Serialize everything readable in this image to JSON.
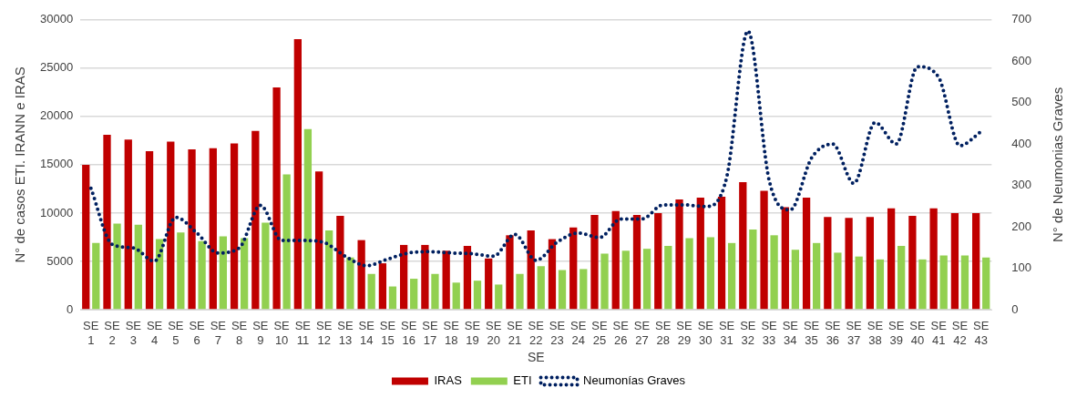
{
  "chart_data": {
    "type": "bar",
    "categories": [
      "SE 1",
      "SE 2",
      "SE 3",
      "SE 4",
      "SE 5",
      "SE 6",
      "SE 7",
      "SE 8",
      "SE 9",
      "SE 10",
      "SE 11",
      "SE 12",
      "SE 13",
      "SE 14",
      "SE 15",
      "SE 16",
      "SE 17",
      "SE 18",
      "SE 19",
      "SE 20",
      "SE 21",
      "SE 22",
      "SE 23",
      "SE 24",
      "SE 25",
      "SE 26",
      "SE 27",
      "SE 28",
      "SE 29",
      "SE 30",
      "SE 31",
      "SE 32",
      "SE 33",
      "SE 34",
      "SE 35",
      "SE 36",
      "SE 37",
      "SE 38",
      "SE 39",
      "SE 40",
      "SE 41",
      "SE 42",
      "SE 43"
    ],
    "xlabel": "SE",
    "ylabel": "N° de casos ETI. IRANN e IRAS",
    "y2label": "N° de Neumonias Graves",
    "series": [
      {
        "name": "IRAS",
        "color": "#c00000",
        "values": [
          15000,
          18100,
          17600,
          16400,
          17400,
          16600,
          16700,
          17200,
          18500,
          23000,
          28000,
          14300,
          9700,
          7200,
          4800,
          6700,
          6700,
          6100,
          6600,
          5300,
          7700,
          8200,
          7300,
          8500,
          9800,
          10200,
          9800,
          10000,
          11400,
          11600,
          11700,
          13200,
          12300,
          10600,
          11600,
          9600,
          9500,
          9600,
          10500,
          9700,
          10500,
          10000,
          10000
        ]
      },
      {
        "name": "ETI",
        "color": "#92d050",
        "values": [
          6900,
          8900,
          8800,
          7300,
          8000,
          7100,
          7600,
          7400,
          9000,
          14000,
          18700,
          8200,
          5400,
          3700,
          2400,
          3200,
          3700,
          2800,
          3000,
          2600,
          3700,
          4500,
          4100,
          4200,
          5800,
          6100,
          6300,
          6600,
          7400,
          7500,
          6900,
          8300,
          7700,
          6200,
          6900,
          5900,
          5500,
          5200,
          6600,
          5200,
          5600,
          5600,
          5400
        ]
      },
      {
        "name": "Neumonías Graves",
        "type": "line",
        "axis": "y2",
        "color": "#002060",
        "line_style": "dotted",
        "marker": "none",
        "values": [
          293,
          158,
          149,
          117,
          223,
          185,
          137,
          149,
          252,
          167,
          167,
          162,
          129,
          106,
          122,
          137,
          140,
          137,
          135,
          129,
          182,
          119,
          163,
          185,
          174,
          219,
          219,
          253,
          253,
          249,
          320,
          673,
          313,
          241,
          366,
          400,
          305,
          452,
          400,
          587,
          561,
          396,
          430
        ]
      }
    ],
    "ylim": [
      0,
      30000
    ],
    "yticks": [
      0,
      5000,
      10000,
      15000,
      20000,
      25000,
      30000
    ],
    "y2lim": [
      0,
      700
    ],
    "y2ticks": [
      0,
      100,
      200,
      300,
      400,
      500,
      600,
      700
    ],
    "grid": "y",
    "legend": "bottom"
  }
}
